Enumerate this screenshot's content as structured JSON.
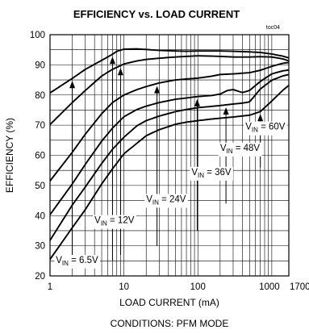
{
  "chart_data": {
    "type": "line",
    "title": "EFFICIENCY vs. LOAD CURRENT",
    "tag": "toc04",
    "xlabel": "LOAD CURRENT (mA)",
    "ylabel": "EFFICIENCY (%)",
    "footnote": "CONDITIONS: PFM MODE",
    "xscale": "log",
    "xlim": [
      1,
      1700
    ],
    "ylim": [
      20,
      100
    ],
    "grid": true,
    "xticks": [
      {
        "value": 1,
        "label": "1"
      },
      {
        "value": 10,
        "label": "10"
      },
      {
        "value": 100,
        "label": "100"
      },
      {
        "value": 1000,
        "label": "1000"
      },
      {
        "value": 1700,
        "label": "1700"
      }
    ],
    "yticks": [
      20,
      30,
      40,
      50,
      60,
      70,
      80,
      90,
      100
    ],
    "series": [
      {
        "name": "VIN = 6.5V",
        "label_main": "V",
        "label_sub": "IN",
        "label_rest": " = 6.5V",
        "x": [
          1,
          2,
          3,
          5,
          7,
          8,
          10,
          15,
          20,
          30,
          50,
          70,
          100,
          150,
          200,
          300,
          500,
          700,
          1000,
          1400,
          1700
        ],
        "y": [
          80.7,
          85.5,
          88.5,
          91.5,
          93.5,
          94.5,
          95.2,
          95.3,
          95.1,
          94.8,
          94.6,
          94.5,
          94.6,
          94.6,
          94.6,
          94.5,
          94.3,
          94.1,
          93.6,
          92.9,
          92.3
        ]
      },
      {
        "name": "VIN = 12V",
        "label_main": "V",
        "label_sub": "IN",
        "label_rest": " = 12V",
        "x": [
          1,
          2,
          3,
          5,
          7,
          10,
          15,
          20,
          30,
          50,
          70,
          100,
          150,
          200,
          300,
          500,
          700,
          1000,
          1400,
          1700
        ],
        "y": [
          70.2,
          77.5,
          81.5,
          86.3,
          88.5,
          90.3,
          91.3,
          91.8,
          92.2,
          92.6,
          92.8,
          93.0,
          92.9,
          92.8,
          92.6,
          92.6,
          92.7,
          92.6,
          92.0,
          91.3
        ]
      },
      {
        "name": "VIN = 24V",
        "label_main": "V",
        "label_sub": "IN",
        "label_rest": " = 24V",
        "x": [
          1,
          2,
          3,
          5,
          7,
          10,
          15,
          20,
          30,
          50,
          70,
          100,
          150,
          200,
          300,
          500,
          700,
          1000,
          1400,
          1700
        ],
        "y": [
          51.5,
          61.0,
          67.0,
          73.8,
          77.5,
          80.0,
          81.8,
          82.8,
          84.0,
          85.0,
          85.3,
          85.6,
          86.2,
          86.8,
          87.0,
          87.4,
          88.2,
          89.5,
          90.5,
          90.8
        ]
      },
      {
        "name": "VIN = 36V",
        "label_main": "V",
        "label_sub": "IN",
        "label_rest": " = 36V",
        "x": [
          1,
          2,
          3,
          5,
          7,
          10,
          15,
          20,
          30,
          50,
          70,
          100,
          150,
          200,
          250,
          300,
          400,
          500,
          700,
          1000,
          1400,
          1700
        ],
        "y": [
          40.3,
          50.5,
          57.0,
          64.7,
          69.0,
          72.8,
          75.2,
          76.3,
          77.5,
          78.6,
          79.0,
          79.5,
          79.8,
          80.3,
          81.5,
          81.8,
          80.8,
          81.5,
          84.5,
          87.0,
          88.0,
          88.3
        ]
      },
      {
        "name": "VIN = 48V",
        "label_main": "V",
        "label_sub": "IN",
        "label_rest": " = 48V",
        "x": [
          1,
          2,
          3,
          5,
          7,
          10,
          15,
          20,
          30,
          50,
          70,
          100,
          150,
          200,
          300,
          400,
          500,
          700,
          1000,
          1400,
          1700
        ],
        "y": [
          31.8,
          43.5,
          49.5,
          57.3,
          62.0,
          66.0,
          69.8,
          71.5,
          73.0,
          74.5,
          75.2,
          75.8,
          76.2,
          76.5,
          77.0,
          77.3,
          77.7,
          82.0,
          84.9,
          86.3,
          86.8
        ]
      },
      {
        "name": "VIN = 60V",
        "label_main": "V",
        "label_sub": "IN",
        "label_rest": " = 60V",
        "x": [
          1,
          2,
          3,
          5,
          7,
          10,
          15,
          20,
          30,
          50,
          70,
          100,
          150,
          200,
          300,
          500,
          700,
          1000,
          1400,
          1700
        ],
        "y": [
          25.5,
          36.0,
          42.0,
          50.5,
          55.5,
          60.5,
          64.0,
          66.5,
          68.5,
          70.3,
          71.0,
          71.5,
          72.0,
          72.3,
          72.7,
          73.3,
          74.5,
          78.0,
          81.5,
          83.2
        ]
      }
    ],
    "arrows": [
      {
        "series": 0,
        "x": 2.0,
        "y_from": 25.0
      },
      {
        "series": 0,
        "x": 7.0,
        "y_from": 25.0
      },
      {
        "series": 1,
        "x": 9.0,
        "y_from": 27.0
      },
      {
        "series": 2,
        "x": 28.0,
        "y_from": 30.0
      },
      {
        "series": 3,
        "x": 98.0,
        "y_from": 35.0
      },
      {
        "series": 4,
        "x": 240.0,
        "y_from": 44.0
      },
      {
        "series": 5,
        "x": 700.0,
        "y_from": 56.0
      }
    ],
    "series_labels": [
      {
        "series": 0,
        "x": 1.2,
        "y": 24.3
      },
      {
        "series": 1,
        "x": 4.0,
        "y": 37.5
      },
      {
        "series": 2,
        "x": 20.0,
        "y": 44.5
      },
      {
        "series": 3,
        "x": 82.0,
        "y": 53.5
      },
      {
        "series": 4,
        "x": 200.0,
        "y": 61.5
      },
      {
        "series": 5,
        "x": 440.0,
        "y": 68.5
      }
    ]
  }
}
